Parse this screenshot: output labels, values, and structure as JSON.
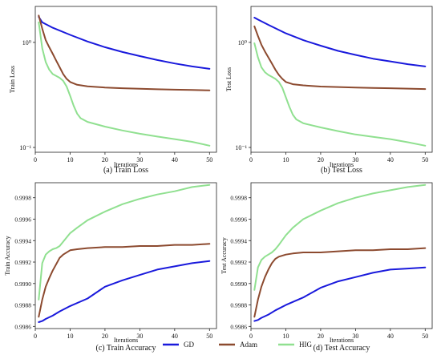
{
  "colors": {
    "GD": "#1a1adc",
    "Adam": "#8c4a2f",
    "HIG": "#90e090"
  },
  "legend": {
    "items": [
      "GD",
      "Adam",
      "HIG"
    ],
    "placement": "bottom-center"
  },
  "chart_data": [
    {
      "type": "line",
      "caption": "(a) Train Loss",
      "xlabel": "Iterations",
      "ylabel": "Train Loss",
      "yscale": "log",
      "xlim": [
        0,
        52
      ],
      "ylim": [
        0.09,
        2.2
      ],
      "xticks": [
        0,
        10,
        20,
        30,
        40,
        50
      ],
      "xtick_labels": [
        "0",
        "10",
        "20",
        "30",
        "40",
        "50"
      ],
      "yticks": [
        0.1,
        1
      ],
      "ytick_labels": [
        "10⁻¹",
        "10⁰"
      ],
      "series": [
        {
          "name": "GD",
          "x": [
            1,
            2,
            5,
            10,
            15,
            20,
            25,
            30,
            35,
            40,
            45,
            50
          ],
          "y": [
            1.75,
            1.55,
            1.38,
            1.18,
            1.02,
            0.9,
            0.81,
            0.74,
            0.68,
            0.63,
            0.59,
            0.56
          ]
        },
        {
          "name": "Adam",
          "x": [
            1,
            2,
            3,
            4,
            5,
            6,
            7,
            8,
            9,
            10,
            12,
            15,
            20,
            25,
            30,
            35,
            40,
            45,
            50
          ],
          "y": [
            1.8,
            1.35,
            1.05,
            0.9,
            0.78,
            0.67,
            0.58,
            0.5,
            0.45,
            0.42,
            0.395,
            0.382,
            0.372,
            0.366,
            0.362,
            0.358,
            0.355,
            0.352,
            0.35
          ]
        },
        {
          "name": "HIG",
          "x": [
            1,
            2,
            3,
            4,
            5,
            6,
            7,
            8,
            9,
            10,
            11,
            12,
            13,
            15,
            20,
            25,
            30,
            35,
            40,
            45,
            50
          ],
          "y": [
            1.55,
            0.88,
            0.65,
            0.55,
            0.5,
            0.48,
            0.46,
            0.43,
            0.38,
            0.31,
            0.25,
            0.21,
            0.19,
            0.175,
            0.158,
            0.145,
            0.135,
            0.127,
            0.12,
            0.113,
            0.104
          ]
        }
      ]
    },
    {
      "type": "line",
      "caption": "(b) Test Loss",
      "xlabel": "Iterations",
      "ylabel": "Test Loss",
      "yscale": "log",
      "xlim": [
        0,
        52
      ],
      "ylim": [
        0.09,
        2.2
      ],
      "xticks": [
        0,
        10,
        20,
        30,
        40,
        50
      ],
      "xtick_labels": [
        "0",
        "10",
        "20",
        "30",
        "40",
        "50"
      ],
      "yticks": [
        0.1,
        1
      ],
      "ytick_labels": [
        "10⁻¹",
        "10⁰"
      ],
      "series": [
        {
          "name": "GD",
          "x": [
            1,
            2,
            5,
            10,
            15,
            20,
            25,
            30,
            35,
            40,
            45,
            50
          ],
          "y": [
            1.72,
            1.65,
            1.47,
            1.22,
            1.05,
            0.93,
            0.83,
            0.76,
            0.7,
            0.66,
            0.62,
            0.59
          ]
        },
        {
          "name": "Adam",
          "x": [
            1,
            2,
            3,
            4,
            5,
            6,
            7,
            8,
            9,
            10,
            12,
            15,
            20,
            25,
            30,
            35,
            40,
            45,
            50
          ],
          "y": [
            1.42,
            1.15,
            0.95,
            0.82,
            0.72,
            0.63,
            0.55,
            0.49,
            0.45,
            0.42,
            0.4,
            0.39,
            0.38,
            0.376,
            0.372,
            0.368,
            0.366,
            0.363,
            0.36
          ]
        },
        {
          "name": "HIG",
          "x": [
            1,
            2,
            3,
            4,
            5,
            6,
            7,
            8,
            9,
            10,
            11,
            12,
            13,
            15,
            20,
            25,
            30,
            35,
            40,
            45,
            50
          ],
          "y": [
            0.98,
            0.72,
            0.58,
            0.52,
            0.49,
            0.47,
            0.45,
            0.42,
            0.37,
            0.3,
            0.245,
            0.205,
            0.185,
            0.17,
            0.155,
            0.143,
            0.133,
            0.126,
            0.12,
            0.112,
            0.104
          ]
        }
      ]
    },
    {
      "type": "line",
      "caption": "(c) Train Accuracy",
      "xlabel": "Iterations",
      "ylabel": "Train Accuracy",
      "yscale": "linear",
      "xlim": [
        0,
        52
      ],
      "ylim": [
        0.99858,
        0.99994
      ],
      "xticks": [
        0,
        10,
        20,
        30,
        40,
        50
      ],
      "xtick_labels": [
        "0",
        "10",
        "20",
        "30",
        "40",
        "50"
      ],
      "yticks": [
        0.9986,
        0.9988,
        0.999,
        0.9992,
        0.9994,
        0.9996,
        0.9998
      ],
      "ytick_labels": [
        "0.9986",
        "0.9988",
        "0.9990",
        "0.9992",
        "0.9994",
        "0.9996",
        "0.9998"
      ],
      "series": [
        {
          "name": "GD",
          "x": [
            1,
            2,
            3,
            5,
            7,
            10,
            15,
            20,
            25,
            30,
            35,
            40,
            45,
            50
          ],
          "y": [
            0.99864,
            0.99865,
            0.99867,
            0.9987,
            0.99874,
            0.99879,
            0.99886,
            0.99897,
            0.99903,
            0.99908,
            0.99913,
            0.99916,
            0.99919,
            0.99921
          ]
        },
        {
          "name": "Adam",
          "x": [
            1,
            2,
            3,
            4,
            5,
            6,
            7,
            8,
            10,
            12,
            15,
            20,
            25,
            30,
            35,
            40,
            45,
            50
          ],
          "y": [
            0.99869,
            0.99885,
            0.99897,
            0.99905,
            0.99912,
            0.99918,
            0.99924,
            0.99927,
            0.99931,
            0.99932,
            0.99933,
            0.99934,
            0.99934,
            0.99935,
            0.99935,
            0.99936,
            0.99936,
            0.99937
          ]
        },
        {
          "name": "HIG",
          "x": [
            1,
            2,
            3,
            4,
            5,
            6,
            7,
            8,
            10,
            12,
            15,
            20,
            25,
            30,
            35,
            40,
            45,
            50
          ],
          "y": [
            0.99885,
            0.99919,
            0.99927,
            0.9993,
            0.99932,
            0.99933,
            0.99935,
            0.99939,
            0.99947,
            0.99952,
            0.99959,
            0.99967,
            0.99974,
            0.99979,
            0.99983,
            0.99986,
            0.9999,
            0.99992
          ]
        }
      ]
    },
    {
      "type": "line",
      "caption": "(d) Test Accuracy",
      "xlabel": "Iterations",
      "ylabel": "Test Accuracy",
      "yscale": "linear",
      "xlim": [
        0,
        52
      ],
      "ylim": [
        0.99858,
        0.99994
      ],
      "xticks": [
        0,
        10,
        20,
        30,
        40,
        50
      ],
      "xtick_labels": [
        "0",
        "10",
        "20",
        "30",
        "40",
        "50"
      ],
      "yticks": [
        0.9986,
        0.9988,
        0.999,
        0.9992,
        0.9994,
        0.9996,
        0.9998
      ],
      "ytick_labels": [
        "0.9986",
        "0.9988",
        "0.9990",
        "0.9992",
        "0.9994",
        "0.9996",
        "0.9998"
      ],
      "series": [
        {
          "name": "GD",
          "x": [
            1,
            2,
            3,
            5,
            7,
            10,
            15,
            20,
            25,
            30,
            35,
            40,
            45,
            50
          ],
          "y": [
            0.99865,
            0.99866,
            0.99868,
            0.99871,
            0.99875,
            0.9988,
            0.99887,
            0.99896,
            0.99902,
            0.99906,
            0.9991,
            0.99913,
            0.99914,
            0.99915
          ]
        },
        {
          "name": "Adam",
          "x": [
            1,
            2,
            3,
            4,
            5,
            6,
            7,
            8,
            10,
            12,
            15,
            20,
            25,
            30,
            35,
            40,
            45,
            50
          ],
          "y": [
            0.99869,
            0.99885,
            0.99897,
            0.99906,
            0.99913,
            0.99919,
            0.99923,
            0.99925,
            0.99927,
            0.99928,
            0.99929,
            0.99929,
            0.9993,
            0.99931,
            0.99931,
            0.99932,
            0.99932,
            0.99933
          ]
        },
        {
          "name": "HIG",
          "x": [
            1,
            2,
            3,
            4,
            5,
            6,
            7,
            8,
            10,
            12,
            15,
            20,
            25,
            30,
            35,
            40,
            45,
            50
          ],
          "y": [
            0.99894,
            0.99915,
            0.99922,
            0.99925,
            0.99927,
            0.99929,
            0.99932,
            0.99936,
            0.99945,
            0.99952,
            0.9996,
            0.99968,
            0.99975,
            0.9998,
            0.99984,
            0.99987,
            0.9999,
            0.99992
          ]
        }
      ]
    }
  ]
}
